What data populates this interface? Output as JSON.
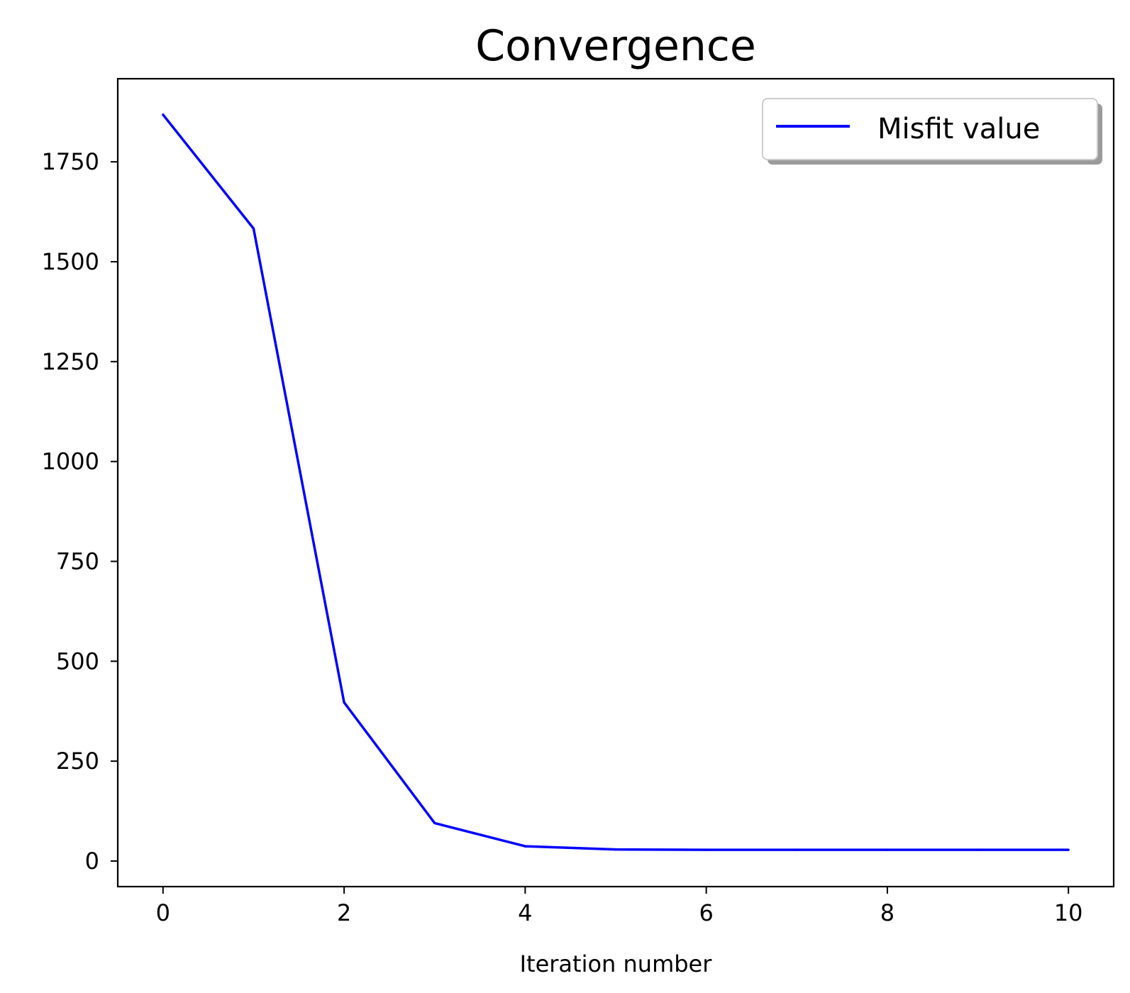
{
  "chart_data": {
    "type": "line",
    "title": "Convergence",
    "xlabel": "Iteration number",
    "ylabel": "",
    "xlim": [
      -0.5,
      10.5
    ],
    "ylim": [
      -64,
      1958
    ],
    "xticks": [
      0,
      2,
      4,
      6,
      8,
      10
    ],
    "yticks": [
      0,
      250,
      500,
      750,
      1000,
      1250,
      1500,
      1750
    ],
    "grid": false,
    "legend": {
      "placement": "top-right",
      "shadow": true
    },
    "series": [
      {
        "name": "Misfit value",
        "color": "#0000ff",
        "x": [
          0,
          1,
          2,
          3,
          4,
          5,
          6,
          7,
          8,
          9,
          10
        ],
        "y": [
          1868,
          1583,
          397,
          95,
          37,
          29,
          28,
          28,
          28,
          28,
          28
        ]
      }
    ]
  }
}
